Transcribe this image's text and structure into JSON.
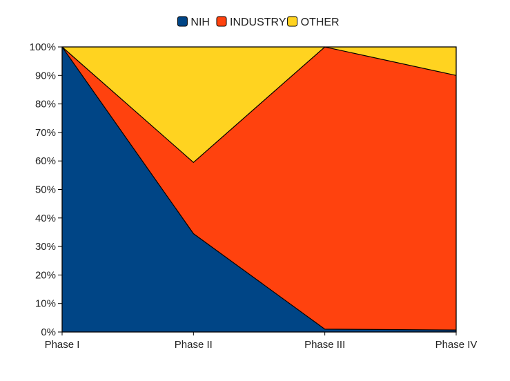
{
  "chart_data": {
    "type": "area",
    "stacked": true,
    "normalized_percent": true,
    "categories": [
      "Phase I",
      "Phase II",
      "Phase III",
      "Phase IV"
    ],
    "series": [
      {
        "name": "NIH",
        "color": "#004586",
        "values": [
          100,
          34.5,
          1,
          0.7
        ]
      },
      {
        "name": "INDUSTRY",
        "color": "#ff420e",
        "values": [
          0,
          25,
          99,
          89.3
        ]
      },
      {
        "name": "OTHER",
        "color": "#ffd320",
        "values": [
          0,
          40.5,
          0,
          10
        ]
      }
    ],
    "y_ticks": [
      "0%",
      "10%",
      "20%",
      "30%",
      "40%",
      "50%",
      "60%",
      "70%",
      "80%",
      "90%",
      "100%"
    ],
    "ylim": [
      0,
      100
    ],
    "grid": false,
    "legend_position": "top"
  }
}
